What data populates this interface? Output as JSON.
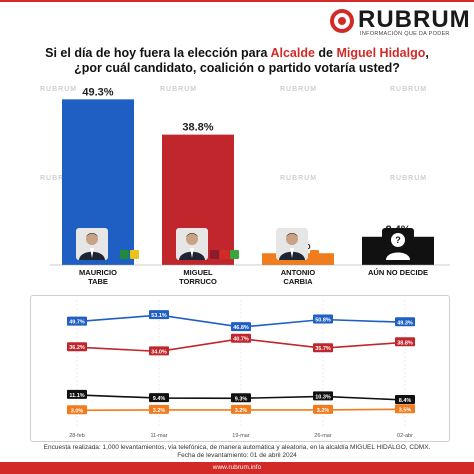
{
  "brand": {
    "name": "RUBRUM",
    "tagline": "INFORMACIÓN QUE DA PODER",
    "watermark": "RUBRUM",
    "accent": "#d22b27"
  },
  "title": {
    "line1_pre": "Si el día de hoy fuera la elección para ",
    "line1_hl1": "Alcalde",
    "line1_mid": " de ",
    "line1_hl2": "Miguel Hidalgo",
    "line1_post": ",",
    "line2": "¿por cuál candidato, coalición o partido votaría usted?"
  },
  "candidates": [
    {
      "name_line1": "MAURICIO",
      "name_line2": "TABE",
      "avatar": "man-in-suit-icon",
      "badges": [
        "PAN",
        "PRI",
        "PRD"
      ]
    },
    {
      "name_line1": "MIGUEL",
      "name_line2": "TORRUCO",
      "avatar": "man-in-suit-icon",
      "badges": [
        "MOR",
        "PT",
        "PVEM"
      ]
    },
    {
      "name_line1": "ANTONIO",
      "name_line2": "CARBIA",
      "avatar": "man-in-suit-icon",
      "badges": [
        "MC"
      ]
    },
    {
      "name_line1": "AÚN NO DECIDE",
      "name_line2": "",
      "avatar": "unknown-person-icon",
      "badges": []
    }
  ],
  "chart_data": [
    {
      "type": "bar",
      "categories": [
        "MAURICIO TABE",
        "MIGUEL TORRUCO",
        "ANTONIO CARBIA",
        "AÚN NO DECIDE"
      ],
      "values": [
        49.3,
        38.8,
        3.5,
        8.4
      ],
      "value_labels": [
        "49.3%",
        "38.8%",
        "3.5%",
        "8.4%"
      ],
      "colors": [
        "#1f5fc4",
        "#c0262b",
        "#f07c1d",
        "#111111"
      ],
      "ylim": [
        0,
        50
      ]
    },
    {
      "type": "line",
      "x": [
        "28-feb",
        "11-mar",
        "19-mar",
        "26-mar",
        "02-abr"
      ],
      "series": [
        {
          "values": [
            49.7,
            53.1,
            46.8,
            50.8,
            49.3
          ],
          "labels": [
            "49.7%",
            "53.1%",
            "46.8%",
            "50.8%",
            "49.3%"
          ],
          "color": "#1f5fc4"
        },
        {
          "values": [
            36.2,
            34.0,
            40.7,
            35.7,
            38.8
          ],
          "labels": [
            "36.2%",
            "34.0%",
            "40.7%",
            "35.7%",
            "38.8%"
          ],
          "color": "#c0262b"
        },
        {
          "values": [
            11.1,
            9.4,
            9.3,
            10.3,
            8.4
          ],
          "labels": [
            "11.1%",
            "9.4%",
            "9.3%",
            "10.3%",
            "8.4%"
          ],
          "color": "#111111"
        },
        {
          "values": [
            3.0,
            3.2,
            3.2,
            3.2,
            3.5
          ],
          "labels": [
            "3.0%",
            "3.2%",
            "3.2%",
            "3.2%",
            "3.5%"
          ],
          "color": "#f07c1d"
        }
      ],
      "ylim": [
        0,
        60
      ]
    }
  ],
  "footer": {
    "note_line1": "Encuesta realizada: 1,000 levantamientos, vía telefónica, de manera automática y aleatoria, en la alcaldía MIGUEL HIDALGO, CDMX.",
    "note_line2": "Fecha de levantamiento: 01 de abril 2024",
    "url": "www.rubrum.info"
  }
}
